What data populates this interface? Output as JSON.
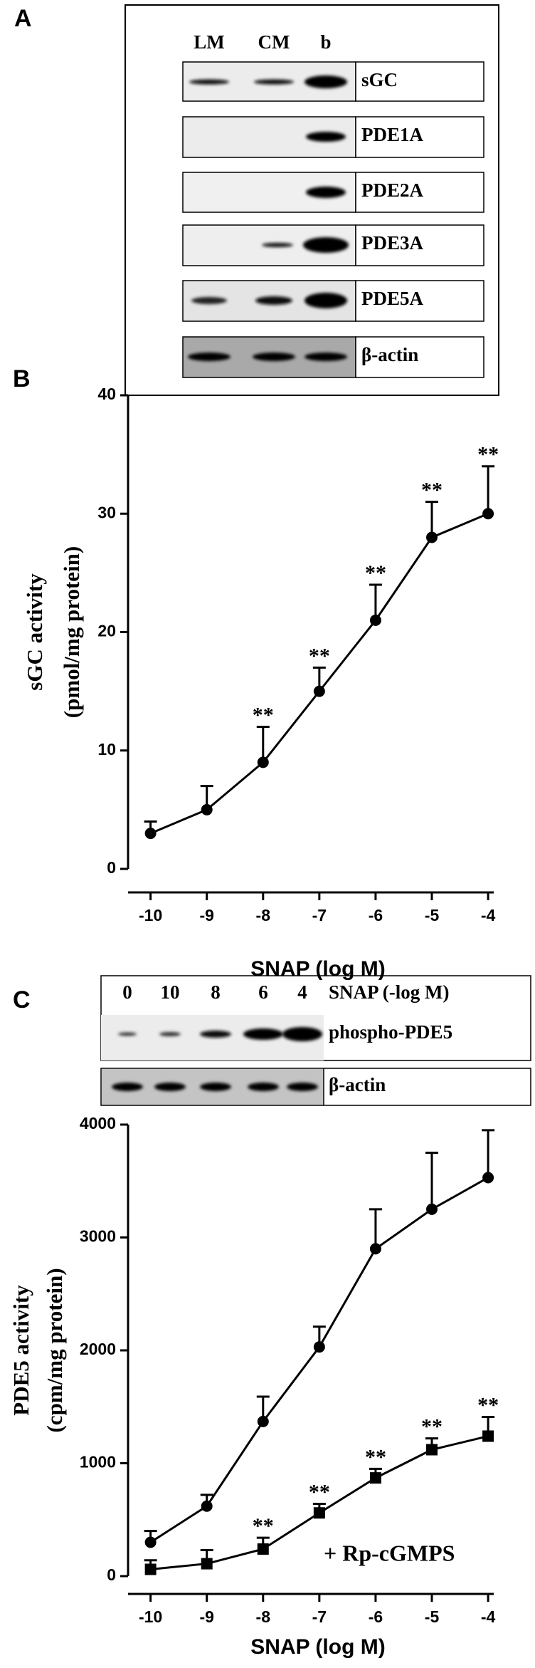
{
  "panel_a": {
    "label": "A",
    "lanes": [
      "LM",
      "CM",
      "b"
    ],
    "bands": [
      "sGC",
      "PDE1A",
      "PDE2A",
      "PDE3A",
      "PDE5A",
      "β-actin"
    ]
  },
  "chart_data": [
    {
      "type": "line",
      "label": "B",
      "ylabel": [
        "sGC activity",
        "(pmol/mg protein)"
      ],
      "xlabel": "SNAP (log M)",
      "x": [
        -10,
        -9,
        -8,
        -7,
        -6,
        -5,
        -4
      ],
      "xlim": [
        -10.4,
        -3.9
      ],
      "xticks": [
        -10,
        -9,
        -8,
        -7,
        -6,
        -5,
        -4
      ],
      "ylim": [
        0,
        40
      ],
      "yticks": [
        0,
        10,
        20,
        30,
        40
      ],
      "series": [
        {
          "color": "#000000",
          "marker": "circle",
          "values": [
            3,
            5,
            9,
            15,
            21,
            28,
            30
          ],
          "errors": [
            1,
            2,
            3,
            2,
            3,
            3,
            4
          ],
          "annotations": [
            null,
            null,
            "**",
            "**",
            "**",
            "**",
            "**"
          ]
        }
      ]
    },
    {
      "type": "line",
      "label": "C",
      "blot": {
        "lanes": [
          "0",
          "10",
          "8",
          "6",
          "4"
        ],
        "lane_title": "SNAP (-log M)",
        "bands": [
          "phospho-PDE5",
          "β-actin"
        ]
      },
      "ylabel": [
        "PDE5 activity",
        "(cpm/mg protein)"
      ],
      "xlabel": "SNAP (log M)",
      "x": [
        -10,
        -9,
        -8,
        -7,
        -6,
        -5,
        -4
      ],
      "xlim": [
        -10.4,
        -3.9
      ],
      "xticks": [
        -10,
        -9,
        -8,
        -7,
        -6,
        -5,
        -4
      ],
      "ylim": [
        0,
        4000
      ],
      "yticks": [
        0,
        1000,
        2000,
        3000,
        4000
      ],
      "series": [
        {
          "color": "#000000",
          "marker": "circle",
          "values": [
            300,
            620,
            1370,
            2030,
            2900,
            3250,
            3530
          ],
          "errors": [
            100,
            100,
            220,
            180,
            350,
            500,
            420
          ]
        },
        {
          "name": "+ Rp-cGMPS",
          "color": "#000000",
          "marker": "square",
          "values": [
            60,
            110,
            240,
            560,
            870,
            1120,
            1240
          ],
          "errors": [
            80,
            120,
            100,
            80,
            80,
            100,
            170
          ],
          "annotations": [
            null,
            null,
            "**",
            "**",
            "**",
            "**",
            "**"
          ]
        }
      ]
    }
  ]
}
